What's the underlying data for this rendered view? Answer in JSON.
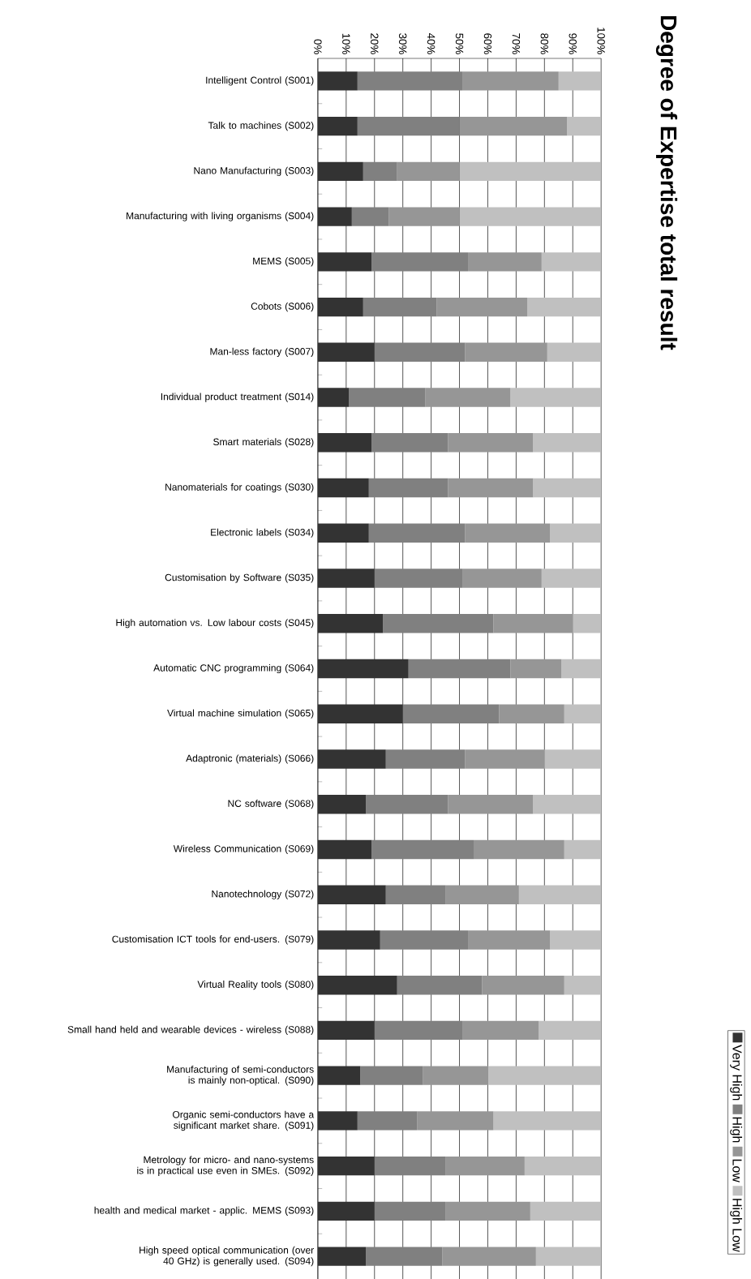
{
  "chart_data": {
    "type": "bar",
    "orientation": "horizontal",
    "stacked": true,
    "title": "Degree of Expertise total result",
    "categories": [
      "Intelligent Control (S001)",
      "Talk to machines (S002)",
      "Nano Manufacturing (S003)",
      "Manufacturing with living organisms (S004)",
      "MEMS (S005)",
      "Cobots (S006)",
      "Man-less factory (S007)",
      "Individual product treatment (S014)",
      "Smart materials (S028)",
      "Nanomaterials for coatings (S030)",
      "Electronic labels (S034)",
      "Customisation by Software (S035)",
      "High automation vs. Low labour costs (S045)",
      "Automatic CNC programming (S064)",
      "Virtual machine simulation (S065)",
      "Adaptronic (materials) (S066)",
      "NC software (S068)",
      "Wireless Communication (S069)",
      "Nanotechnology (S072)",
      "Customisation ICT tools for end-users. (S079)",
      "Virtual Reality tools (S080)",
      "Small hand held and wearable devices - wireless (S088)",
      "Manufacturing of semi-conductors is mainly non-optical. (S090)",
      "Organic semi-conductors have a significant market share. (S091)",
      "Metrology for micro- and nano-systems is in practical use even in SMEs. (S092)",
      "health and medical market - applic. MEMS (S093)",
      "High speed optical communication (over 40 GHz) is generally used. (S094)"
    ],
    "series": [
      {
        "name": "Very High",
        "color": "#333333",
        "values": [
          14,
          14,
          16,
          12,
          19,
          16,
          20,
          11,
          19,
          18,
          18,
          20,
          23,
          32,
          30,
          24,
          17,
          19,
          24,
          22,
          28,
          20,
          15,
          14,
          20,
          20,
          17
        ]
      },
      {
        "name": "High",
        "color": "#808080",
        "values": [
          37,
          36,
          12,
          13,
          34,
          26,
          32,
          27,
          27,
          28,
          34,
          31,
          39,
          36,
          34,
          28,
          29,
          36,
          21,
          31,
          30,
          31,
          22,
          21,
          25,
          25,
          27
        ]
      },
      {
        "name": "Low",
        "color": "#969696",
        "values": [
          34,
          38,
          22,
          25,
          26,
          32,
          29,
          30,
          30,
          30,
          30,
          28,
          28,
          18,
          23,
          28,
          30,
          32,
          26,
          29,
          29,
          27,
          23,
          27,
          28,
          30,
          33
        ]
      },
      {
        "name": "High Low",
        "color": "#c0c0c0",
        "values": [
          15,
          12,
          50,
          50,
          21,
          26,
          19,
          32,
          24,
          24,
          18,
          21,
          10,
          14,
          13,
          20,
          24,
          13,
          29,
          18,
          13,
          22,
          40,
          38,
          27,
          25,
          23
        ]
      }
    ],
    "xlim": [
      0,
      100
    ],
    "xticks": [
      {
        "value": 0,
        "label": "0%"
      },
      {
        "value": 10,
        "label": "10%"
      },
      {
        "value": 20,
        "label": "20%"
      },
      {
        "value": 30,
        "label": "30%"
      },
      {
        "value": 40,
        "label": "40%"
      },
      {
        "value": 50,
        "label": "50%"
      },
      {
        "value": 60,
        "label": "60%"
      },
      {
        "value": 70,
        "label": "70%"
      },
      {
        "value": 80,
        "label": "80%"
      },
      {
        "value": 90,
        "label": "90%"
      },
      {
        "value": 100,
        "label": "100%"
      }
    ],
    "grid": "x",
    "legend": "right"
  }
}
